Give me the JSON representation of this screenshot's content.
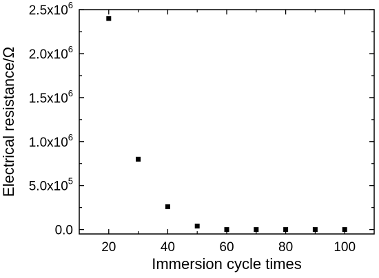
{
  "chart_data": {
    "type": "scatter",
    "xlabel": "Immersion cycle times",
    "ylabel": "Electrical resistance/Ω",
    "xlim": [
      10,
      110
    ],
    "ylim": [
      -50000,
      2500000
    ],
    "x_ticks": [
      20,
      40,
      60,
      80,
      100
    ],
    "x_tick_labels": [
      "20",
      "40",
      "60",
      "80",
      "100"
    ],
    "y_ticks": [
      0,
      500000,
      1000000,
      1500000,
      2000000,
      2500000
    ],
    "y_tick_labels": [
      {
        "mant": "0.0",
        "exp": ""
      },
      {
        "mant": "5.0x10",
        "exp": "5"
      },
      {
        "mant": "1.0x10",
        "exp": "6"
      },
      {
        "mant": "1.5x10",
        "exp": "6"
      },
      {
        "mant": "2.0x10",
        "exp": "6"
      },
      {
        "mant": "2.5x10",
        "exp": "6"
      }
    ],
    "series": [
      {
        "marker": "square",
        "color": "#000000",
        "points": [
          {
            "x": 20,
            "y": 2400000
          },
          {
            "x": 30,
            "y": 800000
          },
          {
            "x": 40,
            "y": 260000
          },
          {
            "x": 50,
            "y": 40000
          },
          {
            "x": 60,
            "y": 0
          },
          {
            "x": 70,
            "y": 0
          },
          {
            "x": 80,
            "y": 0
          },
          {
            "x": 90,
            "y": 0
          },
          {
            "x": 100,
            "y": 0
          }
        ]
      }
    ],
    "grid": false,
    "legend": "none"
  }
}
